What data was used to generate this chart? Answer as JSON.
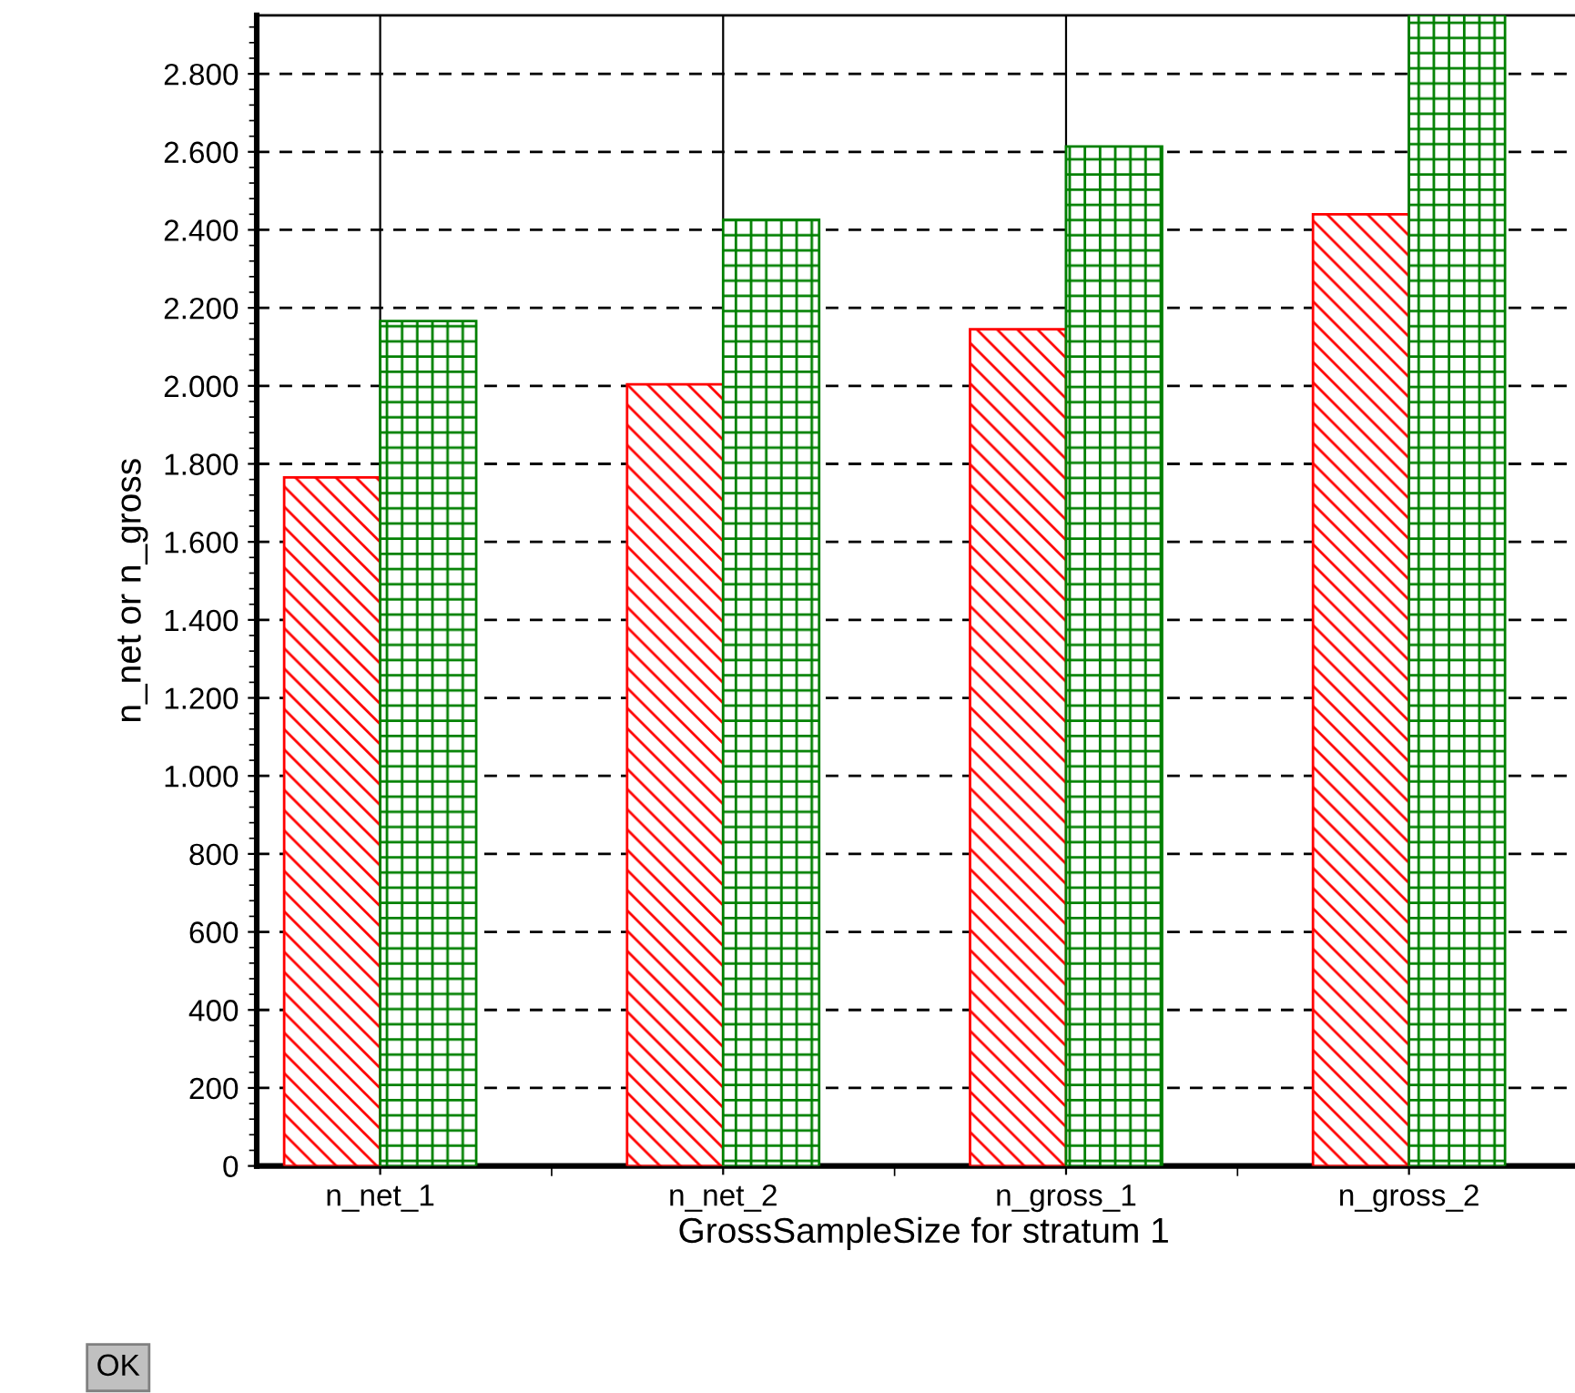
{
  "chart_data": {
    "type": "bar",
    "xlabel": "GrossSampleSize for stratum 1",
    "ylabel": "n_net or n_gross",
    "categories": [
      "n_net_1",
      "n_net_2",
      "n_gross_1",
      "n_gross_2"
    ],
    "series": [
      {
        "color": "#ff0000",
        "values": [
          1765,
          2004,
          2145,
          2440
        ]
      },
      {
        "color": "#008000",
        "values": [
          2166,
          2426,
          2614,
          2950
        ]
      }
    ],
    "ylim": [
      0,
      2950
    ],
    "yticks": [
      {
        "value": 0,
        "label": "0"
      },
      {
        "value": 200,
        "label": "200"
      },
      {
        "value": 400,
        "label": "400"
      },
      {
        "value": 600,
        "label": "600"
      },
      {
        "value": 800,
        "label": "800"
      },
      {
        "value": 1000,
        "label": "1.000"
      },
      {
        "value": 1200,
        "label": "1.200"
      },
      {
        "value": 1400,
        "label": "1.400"
      },
      {
        "value": 1600,
        "label": "1.600"
      },
      {
        "value": 1800,
        "label": "1.800"
      },
      {
        "value": 2000,
        "label": "2.000"
      },
      {
        "value": 2200,
        "label": "2.200"
      },
      {
        "value": 2400,
        "label": "2.400"
      },
      {
        "value": 2600,
        "label": "2.600"
      },
      {
        "value": 2800,
        "label": "2.800"
      }
    ],
    "grid": true,
    "annotations": [
      "OK"
    ]
  }
}
